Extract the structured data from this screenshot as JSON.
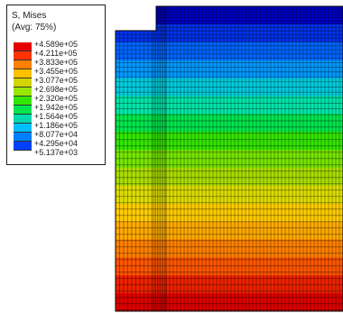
{
  "legend": {
    "title": "S, Mises",
    "subtitle": "(Avg: 75%)",
    "labels": [
      "+4.589e+05",
      "+4.211e+05",
      "+3.833e+05",
      "+3.455e+05",
      "+3.077e+05",
      "+2.698e+05",
      "+2.320e+05",
      "+1.942e+05",
      "+1.564e+05",
      "+1.186e+05",
      "+8.077e+04",
      "+4.295e+04",
      "+5.137e+03"
    ],
    "colors": [
      "#e60000",
      "#ff3300",
      "#ff8000",
      "#ffc000",
      "#d4d400",
      "#99e600",
      "#33e600",
      "#00e64d",
      "#00d9b0",
      "#00bfff",
      "#0080ff",
      "#0040ff",
      "#0000ff"
    ]
  },
  "model": {
    "contour_colors_top_to_bottom": [
      "#0000cc",
      "#0033ee",
      "#0066ff",
      "#0099ff",
      "#00ccdd",
      "#00e6aa",
      "#00e64d",
      "#33e600",
      "#77e600",
      "#aadd00",
      "#dddd00",
      "#ffcc00",
      "#ffaa00",
      "#ff8000",
      "#ff5500",
      "#ee2200",
      "#dd0000"
    ]
  }
}
